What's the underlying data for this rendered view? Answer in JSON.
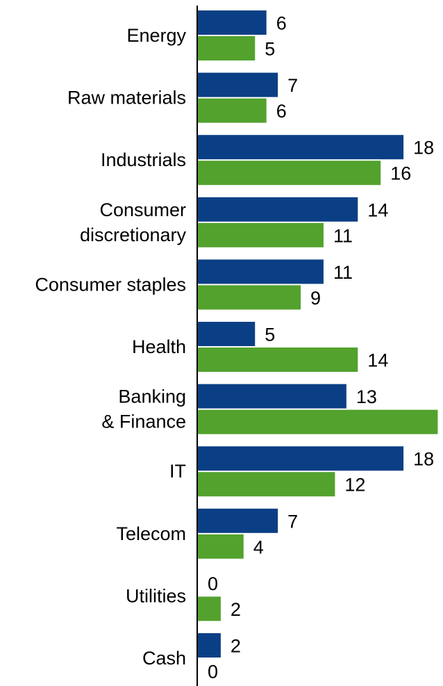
{
  "chart_data": {
    "type": "bar",
    "orientation": "horizontal",
    "categories": [
      [
        "Energy"
      ],
      [
        "Raw materials"
      ],
      [
        "Industrials"
      ],
      [
        "Consumer",
        "discretionary"
      ],
      [
        "Consumer staples"
      ],
      [
        "Health"
      ],
      [
        "Banking",
        "& Finance"
      ],
      [
        "IT"
      ],
      [
        "Telecom"
      ],
      [
        "Utilities"
      ],
      [
        "Cash"
      ]
    ],
    "series": [
      {
        "values": [
          6,
          7,
          18,
          14,
          11,
          5,
          13,
          18,
          7,
          0,
          2
        ],
        "color": "#0b3f85"
      },
      {
        "values": [
          5,
          6,
          16,
          11,
          9,
          14,
          21,
          12,
          4,
          2,
          0
        ],
        "color": "#52a22d"
      }
    ],
    "title": "",
    "xlabel": "",
    "ylabel": "",
    "xlim": [
      0,
      21
    ],
    "grid": false,
    "legend": "none",
    "data_labels": true
  }
}
